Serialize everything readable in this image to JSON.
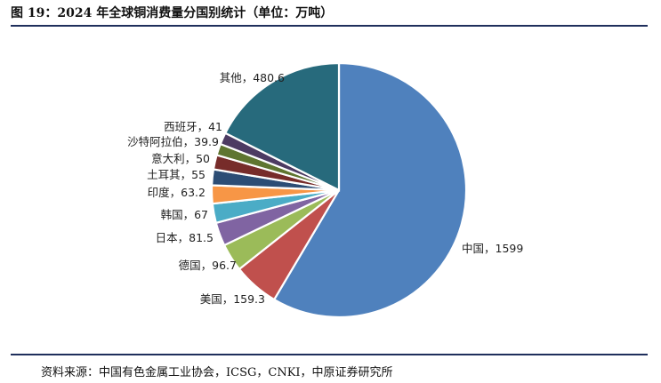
{
  "header": {
    "title": "图 19：2024 年全球铜消费量分国别统计（单位：万吨）"
  },
  "footer": {
    "source": "资料来源：中国有色金属工业协会，ICSG，CNKI，中原证券研究所"
  },
  "chart_data": {
    "type": "pie",
    "title": "图 19：2024 年全球铜消费量分国别统计（单位：万吨）",
    "unit": "万吨",
    "slices": [
      {
        "label": "中国",
        "value": 1599,
        "text": "中国，1599",
        "color": "#4f81bd"
      },
      {
        "label": "美国",
        "value": 159.3,
        "text": "美国，159.3",
        "color": "#c0504d"
      },
      {
        "label": "德国",
        "value": 96.7,
        "text": "德国，96.7",
        "color": "#9bbb59"
      },
      {
        "label": "日本",
        "value": 81.5,
        "text": "日本，81.5",
        "color": "#8064a2"
      },
      {
        "label": "韩国",
        "value": 67,
        "text": "韩国，67",
        "color": "#4bacc6"
      },
      {
        "label": "印度",
        "value": 63.2,
        "text": "印度，63.2",
        "color": "#f79646"
      },
      {
        "label": "土耳其",
        "value": 55,
        "text": "土耳其，55",
        "color": "#2c4d75"
      },
      {
        "label": "意大利",
        "value": 50,
        "text": "意大利，50",
        "color": "#772c2a"
      },
      {
        "label": "沙特阿拉伯",
        "value": 39.9,
        "text": "沙特阿拉伯，39.9",
        "color": "#5f7530"
      },
      {
        "label": "西班牙",
        "value": 41,
        "text": "西班牙，41",
        "color": "#4d3b62"
      },
      {
        "label": "其他",
        "value": 480.6,
        "text": "其他，480.6",
        "color": "#276a7c"
      }
    ]
  }
}
